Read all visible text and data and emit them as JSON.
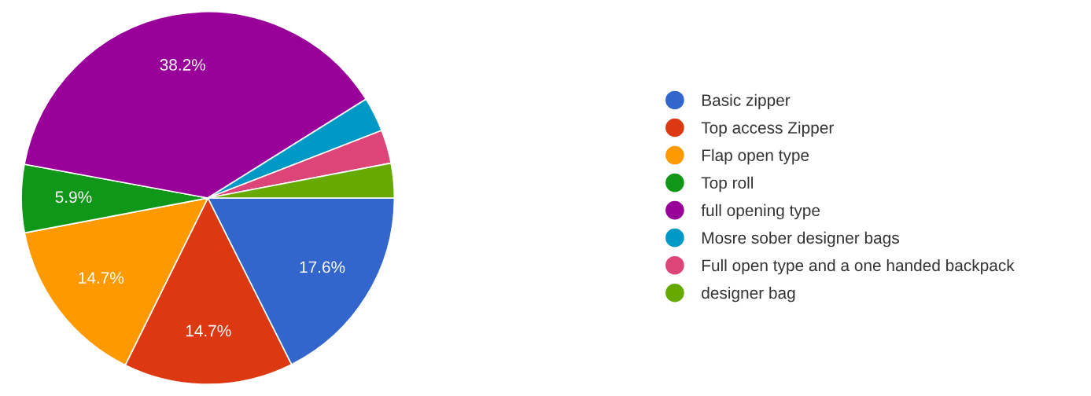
{
  "chart_data": {
    "type": "pie",
    "categories": [
      "Basic zipper",
      "Top access Zipper",
      "Flap open type",
      "Top roll",
      "full opening type",
      "Mosre sober designer bags",
      "Full open type and a one handed backpack",
      "designer bag"
    ],
    "values": [
      17.6,
      14.7,
      14.7,
      5.9,
      38.2,
      3.0,
      2.9,
      3.0
    ],
    "value_labels": [
      "17.6%",
      "14.7%",
      "14.7%",
      "5.9%",
      "38.2%",
      null,
      null,
      null
    ],
    "colors": [
      "#3366cc",
      "#dc3912",
      "#ff9900",
      "#109618",
      "#990099",
      "#0099c6",
      "#dd4477",
      "#66aa00"
    ],
    "legend": "right"
  }
}
